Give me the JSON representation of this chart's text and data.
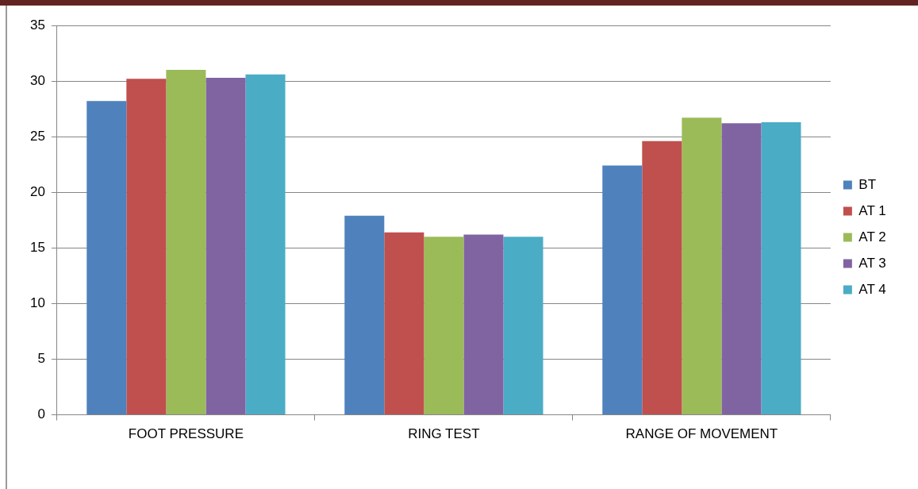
{
  "chart_data": {
    "type": "bar",
    "categories": [
      "FOOT PRESSURE",
      "RING TEST",
      "RANGE OF MOVEMENT"
    ],
    "series": [
      {
        "name": "BT",
        "color": "#4f81bd",
        "values": [
          28.2,
          17.9,
          22.4
        ]
      },
      {
        "name": "AT 1",
        "color": "#c0504d",
        "values": [
          30.2,
          16.4,
          24.6
        ]
      },
      {
        "name": "AT 2",
        "color": "#9bbb59",
        "values": [
          31.0,
          16.0,
          26.7
        ]
      },
      {
        "name": "AT 3",
        "color": "#8064a2",
        "values": [
          30.3,
          16.2,
          26.2
        ]
      },
      {
        "name": "AT 4",
        "color": "#4bacc6",
        "values": [
          30.6,
          16.0,
          26.3
        ]
      }
    ],
    "ylim": [
      0,
      35
    ],
    "yticks": [
      0,
      5,
      10,
      15,
      20,
      25,
      30,
      35
    ],
    "grid": "y",
    "legend": "right"
  }
}
